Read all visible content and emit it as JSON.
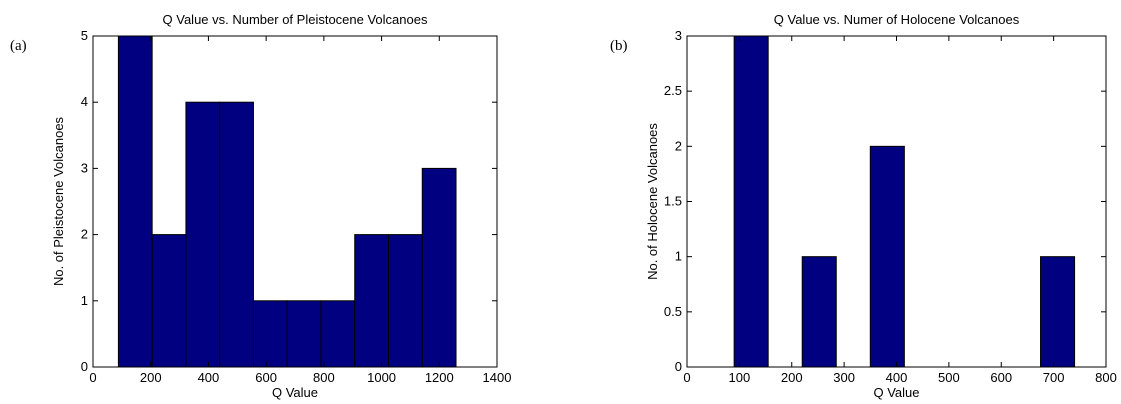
{
  "chart_data": [
    {
      "panel_label": "(a)",
      "type": "bar",
      "title": "Q Value vs. Number of Pleistocene Volcanoes",
      "xlabel": "Q Value",
      "ylabel": "No. of Pleistocene Volcanoes",
      "xlim": [
        0,
        1400
      ],
      "ylim": [
        0,
        5
      ],
      "xticks": [
        0,
        200,
        400,
        600,
        800,
        1000,
        1200,
        1400
      ],
      "yticks": [
        0,
        1,
        2,
        3,
        4,
        5
      ],
      "bar_color": "#000080",
      "bins": [
        {
          "x0": 88,
          "x1": 205,
          "value": 5
        },
        {
          "x0": 205,
          "x1": 322,
          "value": 2
        },
        {
          "x0": 322,
          "x1": 439,
          "value": 4
        },
        {
          "x0": 439,
          "x1": 556,
          "value": 4
        },
        {
          "x0": 556,
          "x1": 673,
          "value": 1
        },
        {
          "x0": 673,
          "x1": 790,
          "value": 1
        },
        {
          "x0": 790,
          "x1": 907,
          "value": 1
        },
        {
          "x0": 907,
          "x1": 1024,
          "value": 2
        },
        {
          "x0": 1024,
          "x1": 1141,
          "value": 2
        },
        {
          "x0": 1141,
          "x1": 1258,
          "value": 3
        }
      ]
    },
    {
      "panel_label": "(b)",
      "type": "bar",
      "title": "Q Value vs. Numer of Holocene Volcanoes",
      "xlabel": "Q Value",
      "ylabel": "No. of Holocene Volcanoes",
      "xlim": [
        0,
        800
      ],
      "ylim": [
        0,
        3
      ],
      "xticks": [
        0,
        100,
        200,
        300,
        400,
        500,
        600,
        700,
        800
      ],
      "yticks": [
        0,
        0.5,
        1,
        1.5,
        2,
        2.5,
        3
      ],
      "bar_color": "#000080",
      "bins": [
        {
          "x0": 90,
          "x1": 155,
          "value": 3
        },
        {
          "x0": 155,
          "x1": 220,
          "value": 0
        },
        {
          "x0": 220,
          "x1": 285,
          "value": 1
        },
        {
          "x0": 285,
          "x1": 350,
          "value": 0
        },
        {
          "x0": 350,
          "x1": 415,
          "value": 2
        },
        {
          "x0": 415,
          "x1": 480,
          "value": 0
        },
        {
          "x0": 480,
          "x1": 545,
          "value": 0
        },
        {
          "x0": 545,
          "x1": 610,
          "value": 0
        },
        {
          "x0": 610,
          "x1": 675,
          "value": 0
        },
        {
          "x0": 675,
          "x1": 740,
          "value": 1
        }
      ]
    }
  ]
}
